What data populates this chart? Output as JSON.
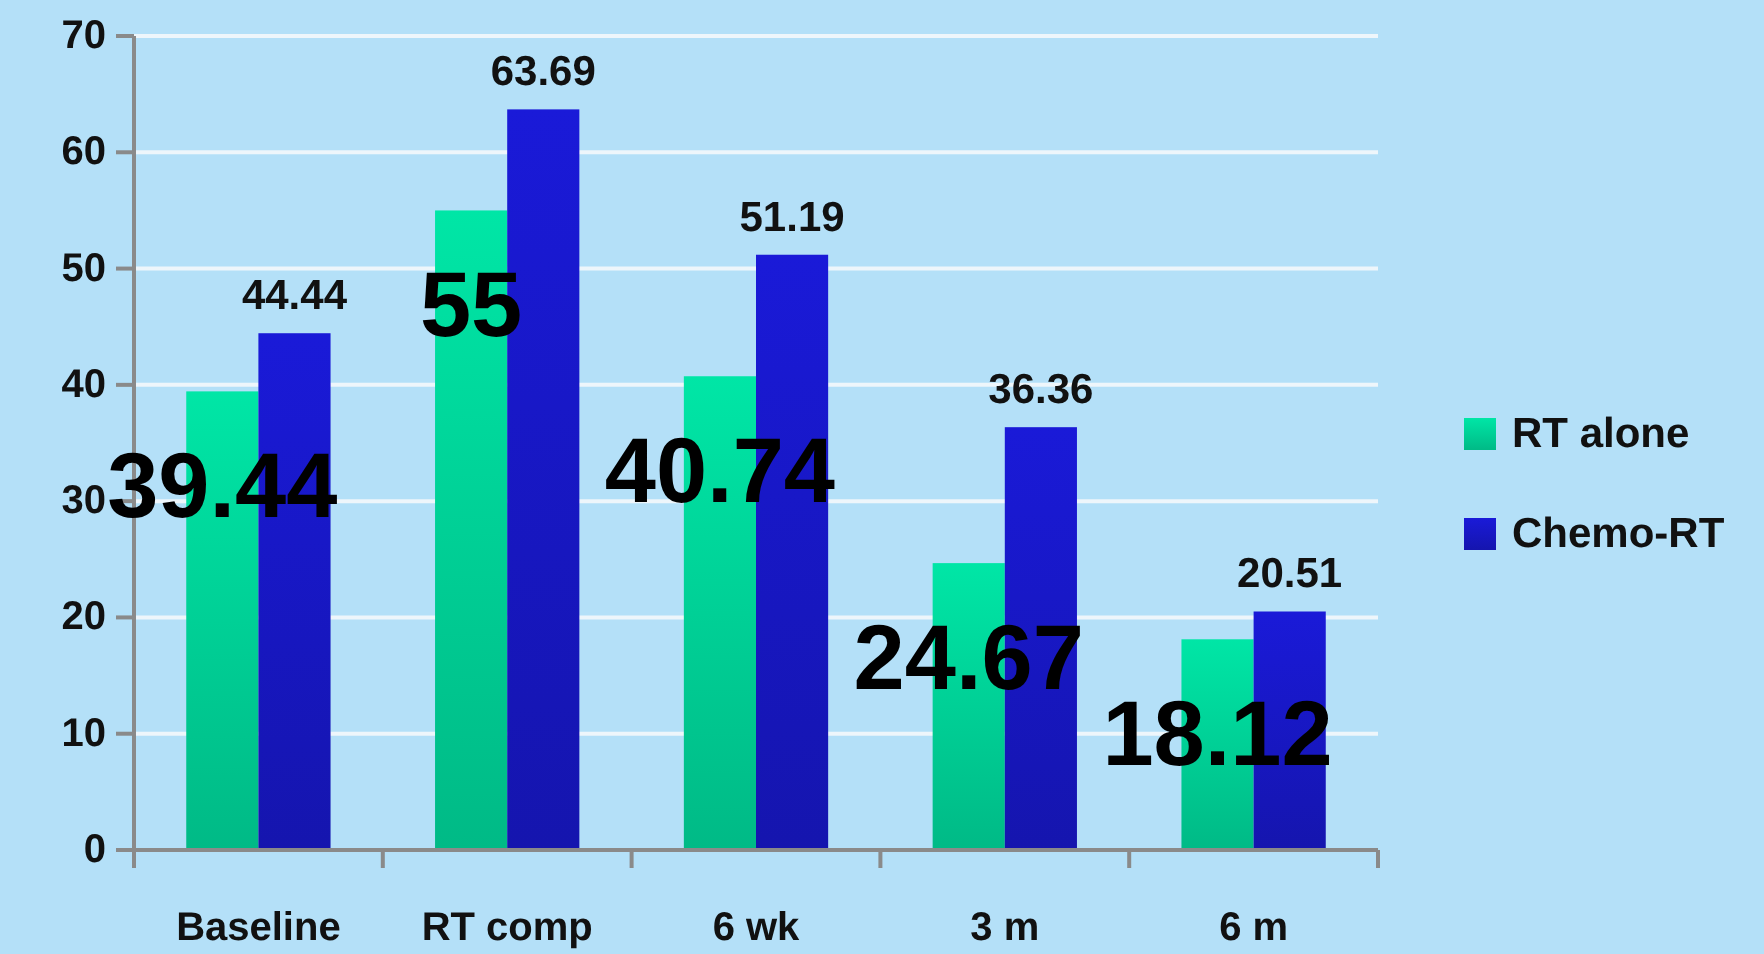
{
  "chart_data": {
    "type": "bar",
    "categories": [
      "Baseline",
      "RT comp",
      "6 wk",
      "3 m",
      "6 m"
    ],
    "series": [
      {
        "name": "RT alone",
        "color": "#00e6a6",
        "values": [
          39.44,
          55,
          40.74,
          24.67,
          18.12
        ]
      },
      {
        "name": "Chemo-RT",
        "color": "#1a1ad8",
        "values": [
          44.44,
          63.69,
          51.19,
          36.36,
          20.51
        ]
      }
    ],
    "ylim": [
      0,
      70
    ],
    "yticks": [
      0,
      10,
      20,
      30,
      40,
      50,
      60,
      70
    ],
    "grid": "y",
    "legend": "right",
    "data_labels": true
  }
}
